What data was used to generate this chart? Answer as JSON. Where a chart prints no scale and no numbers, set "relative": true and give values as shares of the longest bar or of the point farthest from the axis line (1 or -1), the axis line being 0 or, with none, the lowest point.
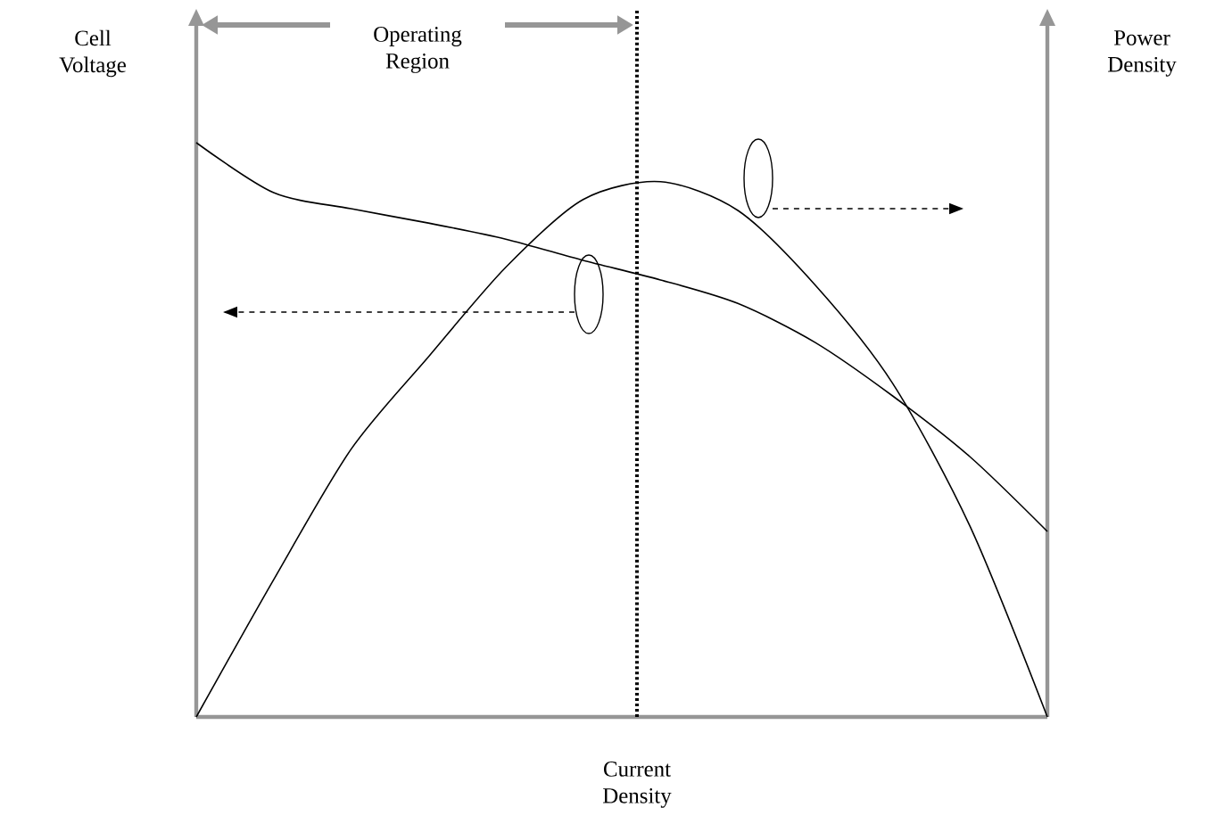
{
  "chart_data": {
    "type": "line",
    "relative": true,
    "xlabel": "Current Density",
    "ylabel": "Cell Voltage",
    "y2label": "Power Density",
    "categories": [
      null,
      null,
      null,
      null,
      null,
      null,
      null,
      null,
      null,
      null,
      null,
      null
    ],
    "series": [
      {
        "color": "#000000",
        "values": [
          1,
          0.913,
          0.885,
          0.86,
          0.832,
          0.795,
          0.761,
          0.72,
          0.652,
          0.559,
          0.453,
          0.323
        ]
      },
      {
        "color": "#000000",
        "values": [
          0,
          0.239,
          0.466,
          0.627,
          0.783,
          0.901,
          0.932,
          0.882,
          0.752,
          0.581,
          0.332,
          0
        ]
      }
    ],
    "annotations": [
      "Operating Region"
    ],
    "marker": "none",
    "line_style": "solid"
  }
}
